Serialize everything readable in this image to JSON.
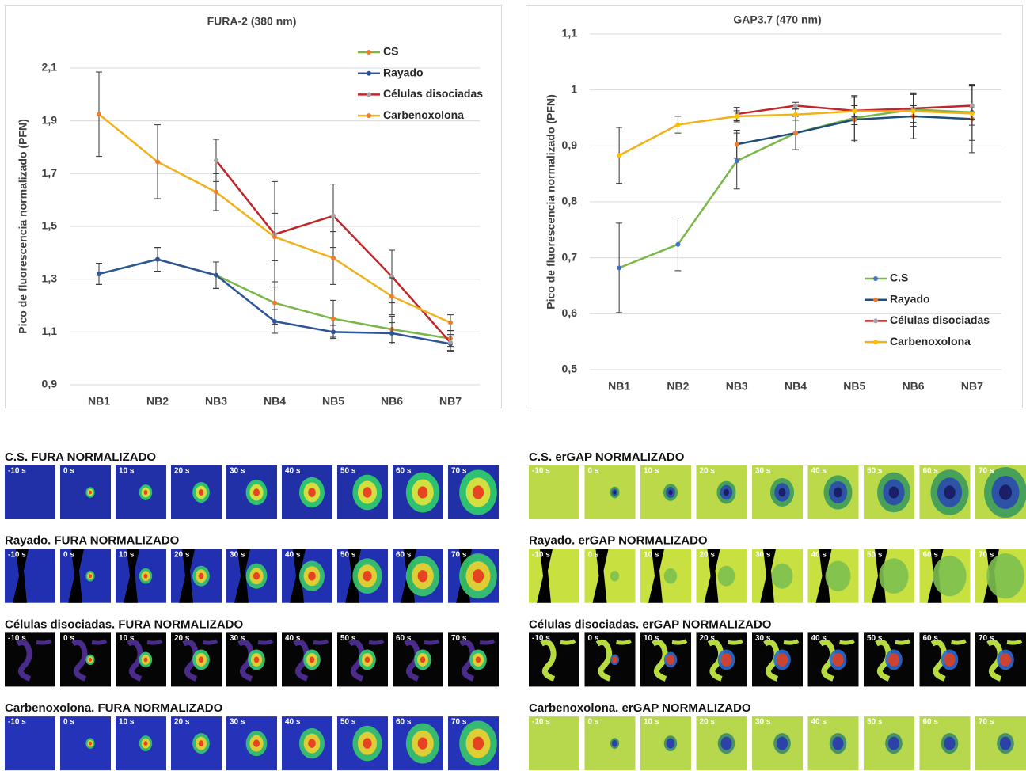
{
  "chart_data": [
    {
      "type": "line",
      "title": "FURA-2 (380 nm)",
      "y_label": "Pico de fluorescencia normalizado (PFN)",
      "categories": [
        "NB1",
        "NB2",
        "NB3",
        "NB4",
        "NB5",
        "NB6",
        "NB7"
      ],
      "ylim": [
        0.9,
        2.1
      ],
      "yticks": [
        {
          "value": 0.9,
          "label": "0,9"
        },
        {
          "value": 1.1,
          "label": "1,1"
        },
        {
          "value": 1.3,
          "label": "1,3"
        },
        {
          "value": 1.5,
          "label": "1,5"
        },
        {
          "value": 1.7,
          "label": "1,7"
        },
        {
          "value": 1.9,
          "label": "1,9"
        },
        {
          "value": 2.1,
          "label": "2,1"
        }
      ],
      "grid": true,
      "legend": "upper right",
      "series": [
        {
          "name": "CS",
          "color": "#7ab648",
          "marker_color": "#ed7d31",
          "values": [
            1.32,
            1.375,
            1.315,
            1.21,
            1.15,
            1.11,
            1.075
          ],
          "errors": [
            0.04,
            0.045,
            0.05,
            0.08,
            0.07,
            0.05,
            0.03
          ]
        },
        {
          "name": "Rayado",
          "color": "#2e5597",
          "marker_color": "#2e5597",
          "values": [
            1.32,
            1.375,
            1.315,
            1.14,
            1.1,
            1.095,
            1.055
          ],
          "errors": [
            0.04,
            0.045,
            0.05,
            0.045,
            0.025,
            0.04,
            0.03
          ]
        },
        {
          "name": "Células disociadas",
          "color": "#c0262a",
          "marker_color": "#a5a5a5",
          "values": [
            null,
            null,
            1.75,
            1.47,
            1.54,
            1.31,
            1.06
          ],
          "errors": [
            null,
            null,
            0.08,
            0.2,
            0.12,
            0.1,
            0.03
          ]
        },
        {
          "name": "Carbenoxolona",
          "color": "#f0b21b",
          "marker_color": "#ed7d31",
          "values": [
            1.925,
            1.745,
            1.63,
            1.46,
            1.38,
            1.235,
            1.135
          ],
          "errors": [
            0.16,
            0.14,
            0.07,
            0.09,
            0.1,
            0.07,
            0.03
          ]
        }
      ]
    },
    {
      "type": "line",
      "title": "GAP3.7 (470 nm)",
      "y_label": "Pico de fluorescencia normalizado (PFN)",
      "categories": [
        "NB1",
        "NB2",
        "NB3",
        "NB4",
        "NB5",
        "NB6",
        "NB7"
      ],
      "ylim": [
        0.5,
        1.1
      ],
      "yticks": [
        {
          "value": 0.5,
          "label": "0,5"
        },
        {
          "value": 0.6,
          "label": "0,6"
        },
        {
          "value": 0.7,
          "label": "0,7"
        },
        {
          "value": 0.8,
          "label": "0,8"
        },
        {
          "value": 0.9,
          "label": "0,9"
        },
        1,
        {
          "value": 1.1,
          "label": "1,1"
        }
      ],
      "grid": true,
      "legend": "lower right",
      "series": [
        {
          "name": "C.S",
          "color": "#7ab648",
          "marker_color": "#4472c4",
          "values": [
            0.682,
            0.724,
            0.873,
            0.923,
            0.95,
            0.965,
            0.96
          ],
          "errors": [
            0.08,
            0.047,
            0.05,
            0.03,
            0.04,
            0.03,
            0.05
          ]
        },
        {
          "name": "Rayado",
          "color": "#1f4e79",
          "marker_color": "#ed7d31",
          "values": [
            null,
            null,
            0.903,
            0.923,
            0.947,
            0.953,
            0.948
          ],
          "errors": [
            null,
            null,
            0.025,
            0.03,
            0.04,
            0.04,
            0.06
          ]
        },
        {
          "name": "Células disociadas",
          "color": "#c0262a",
          "marker_color": "#a5a5a5",
          "values": [
            null,
            null,
            0.957,
            0.972,
            0.963,
            0.967,
            0.972
          ],
          "errors": [
            null,
            null,
            0.012,
            0.006,
            0.025,
            0.025,
            0.035
          ]
        },
        {
          "name": "Carbenoxolona",
          "color": "#f0b21b",
          "marker_color": "#ffc000",
          "values": [
            0.883,
            0.938,
            0.953,
            0.956,
            0.962,
            0.962,
            0.958
          ],
          "errors": [
            0.05,
            0.015,
            0.01,
            0.01,
            0.01,
            0.01,
            0.01
          ]
        }
      ]
    }
  ],
  "frame_labels": [
    "-10 s",
    "0 s",
    "10 s",
    "20 s",
    "30 s",
    "40 s",
    "50 s",
    "60 s",
    "70 s"
  ],
  "image_panels": [
    {
      "title": "C.S. FURA NORMALIZADO"
    },
    {
      "title": "Rayado. FURA NORMALIZADO"
    },
    {
      "title": "Células disociadas. FURA NORMALIZADO"
    },
    {
      "title": "Carbenoxolona. FURA NORMALIZADO"
    },
    {
      "title": "C.S. erGAP NORMALIZADO"
    },
    {
      "title": "Rayado. erGAP NORMALIZADO"
    },
    {
      "title": "Células disociadas. erGAP NORMALIZADO"
    },
    {
      "title": "Carbenoxolona. erGAP NORMALIZADO"
    }
  ]
}
